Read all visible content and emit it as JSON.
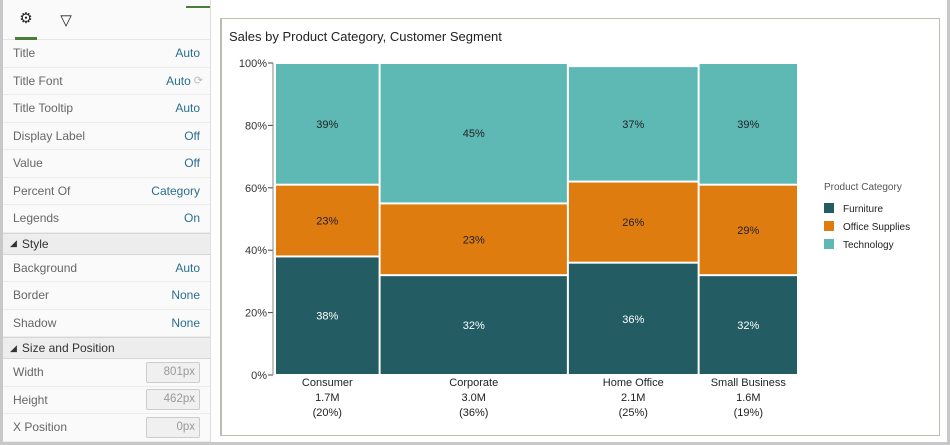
{
  "panel": {
    "tabs": [
      {
        "icon": "gear-icon",
        "glyph": "⚙"
      },
      {
        "icon": "filter-icon",
        "glyph": "▽"
      }
    ],
    "rows": [
      {
        "label": "Title",
        "value": "Auto"
      },
      {
        "label": "Title Font",
        "value": "Auto"
      },
      {
        "label": "Title Tooltip",
        "value": "Auto"
      },
      {
        "label": "Display Label",
        "value": "Off"
      },
      {
        "label": "Value",
        "value": "Off"
      },
      {
        "label": "Percent Of",
        "value": "Category"
      },
      {
        "label": "Legends",
        "value": "On"
      }
    ],
    "style_section": "Style",
    "style_rows": [
      {
        "label": "Background",
        "value": "Auto"
      },
      {
        "label": "Border",
        "value": "None"
      },
      {
        "label": "Shadow",
        "value": "None"
      }
    ],
    "size_section": "Size and Position",
    "size_rows": [
      {
        "label": "Width",
        "value": "801px"
      },
      {
        "label": "Height",
        "value": "462px"
      },
      {
        "label": "X Position",
        "value": "0px"
      }
    ]
  },
  "chart_data": {
    "type": "mosaic",
    "title": "Sales by Product Category, Customer Segment",
    "yticks": [
      "0%",
      "20%",
      "40%",
      "60%",
      "80%",
      "100%"
    ],
    "ylim": [
      0,
      100
    ],
    "categories": [
      {
        "name": "Consumer",
        "total": "1.7M",
        "share_label": "(20%)",
        "share": 20
      },
      {
        "name": "Corporate",
        "total": "3.0M",
        "share_label": "(36%)",
        "share": 36
      },
      {
        "name": "Home Office",
        "total": "2.1M",
        "share_label": "(25%)",
        "share": 25
      },
      {
        "name": "Small Business",
        "total": "1.6M",
        "share_label": "(19%)",
        "share": 19
      }
    ],
    "series": [
      {
        "name": "Furniture",
        "color": "#235c63",
        "values": [
          38,
          32,
          36,
          32
        ]
      },
      {
        "name": "Office Supplies",
        "color": "#de7c10",
        "values": [
          23,
          23,
          26,
          29
        ]
      },
      {
        "name": "Technology",
        "color": "#5eb8b4",
        "values": [
          39,
          45,
          37,
          39
        ]
      }
    ],
    "legend": {
      "title": "Product Category",
      "position": "right"
    }
  }
}
